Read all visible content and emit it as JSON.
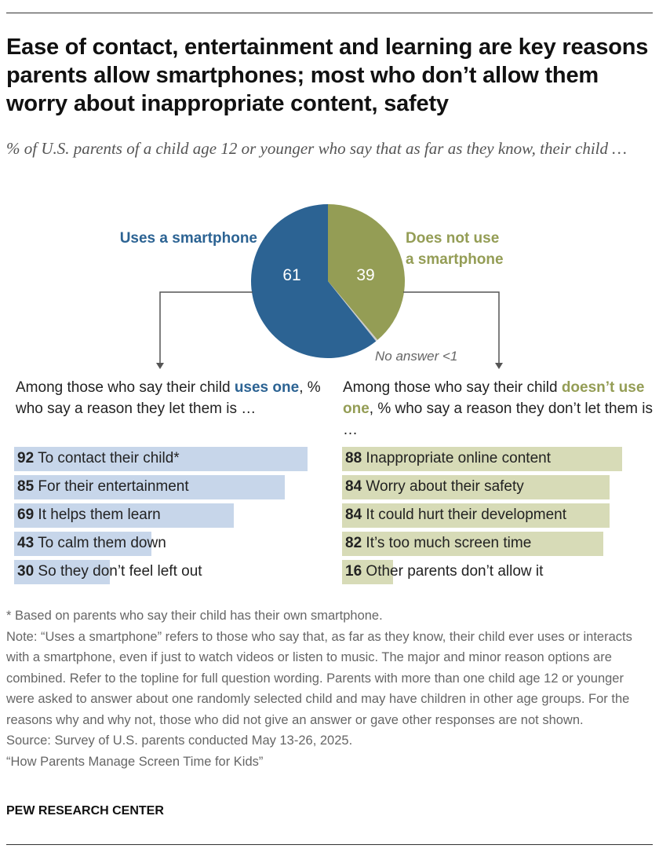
{
  "title": "Ease of contact, entertainment and learning are key reasons parents allow smartphones; most who don’t allow them worry about inappropriate content, safety",
  "subtitle": "% of U.S. parents of a child age 12 or younger who say that as far as they know, their child …",
  "colors": {
    "uses": "#2c6393",
    "not_use": "#949d55",
    "no_answer": "#cccccc",
    "uses_bar": "#c7d6ea",
    "not_use_bar": "#d7dbb7"
  },
  "chart_data": [
    {
      "type": "pie",
      "slices": [
        {
          "name": "Uses a smartphone",
          "value": 61,
          "label": "61"
        },
        {
          "name": "Does not use a smartphone",
          "value": 39,
          "label": "39"
        },
        {
          "name": "No answer <1",
          "value": 0.4
        }
      ],
      "labels": {
        "uses": "Uses a smartphone",
        "not_use_1": "Does not use",
        "not_use_2": "a smartphone",
        "no_answer": "No answer <1"
      }
    },
    {
      "type": "bar",
      "orientation": "horizontal",
      "intro": {
        "pre": "Among those who say their child ",
        "highlight": "uses one",
        "post": ", % who say a reason they let them is …"
      },
      "categories": [
        "To contact their child*",
        "For their entertainment",
        "It helps them learn",
        "To calm them down",
        "So they don’t feel left out"
      ],
      "values": [
        92,
        85,
        69,
        43,
        30
      ],
      "xlim": [
        0,
        100
      ]
    },
    {
      "type": "bar",
      "orientation": "horizontal",
      "intro": {
        "pre": "Among those who say their child ",
        "highlight": "doesn’t use one",
        "post": ", % who say a reason they don’t let them is …"
      },
      "categories": [
        "Inappropriate online content",
        "Worry about their safety",
        "It could hurt their development",
        "It’s too much screen time",
        "Other parents don’t allow it"
      ],
      "values": [
        88,
        84,
        84,
        82,
        16
      ],
      "xlim": [
        0,
        100
      ]
    }
  ],
  "notes": [
    "* Based on parents who say their child has their own smartphone.",
    "Note: “Uses a smartphone” refers to those who say that, as far as they know, their child ever uses or interacts with a smartphone, even if just to watch videos or listen to music. The major and minor reason options are combined. Refer to the topline for full question wording. Parents with more than one child age 12 or younger were asked to answer about one randomly selected child and may have children in other age groups. For the reasons why and why not, those who did not give an answer or gave other responses are not shown.",
    "Source: Survey of U.S. parents conducted May 13-26, 2025.",
    "“How Parents Manage Screen Time for Kids”"
  ],
  "footer": "PEW RESEARCH CENTER"
}
